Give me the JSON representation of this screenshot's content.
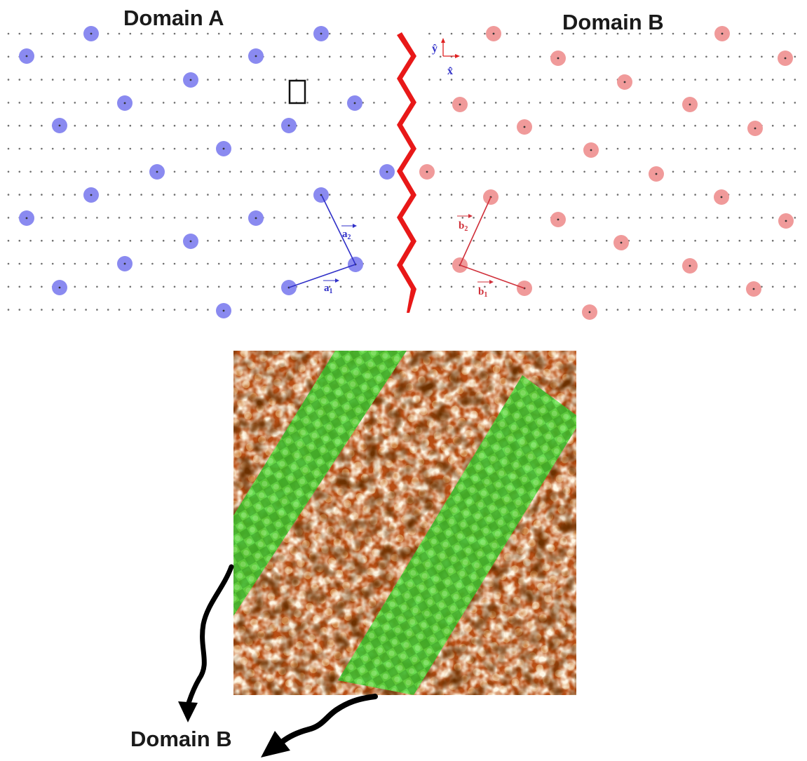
{
  "titles": {
    "domain_a": "Domain A",
    "domain_b_top": "Domain B",
    "domain_b_bottom": "Domain B"
  },
  "axes": {
    "y": "ŷ",
    "x": "x̂"
  },
  "vectors": {
    "a1": {
      "base": "a",
      "sub": "1"
    },
    "a2": {
      "base": "a",
      "sub": "2"
    },
    "b1": {
      "base": "b",
      "sub": "1"
    },
    "b2": {
      "base": "b",
      "sub": "2"
    }
  },
  "colors": {
    "domain_a": "#8a8af0",
    "domain_a_vector": "#3030c8",
    "domain_b": "#f09a9a",
    "domain_b_vector": "#d0303a",
    "boundary": "#e81818",
    "stripe": "#4fd83a",
    "stm_base": "#b84e14"
  }
}
